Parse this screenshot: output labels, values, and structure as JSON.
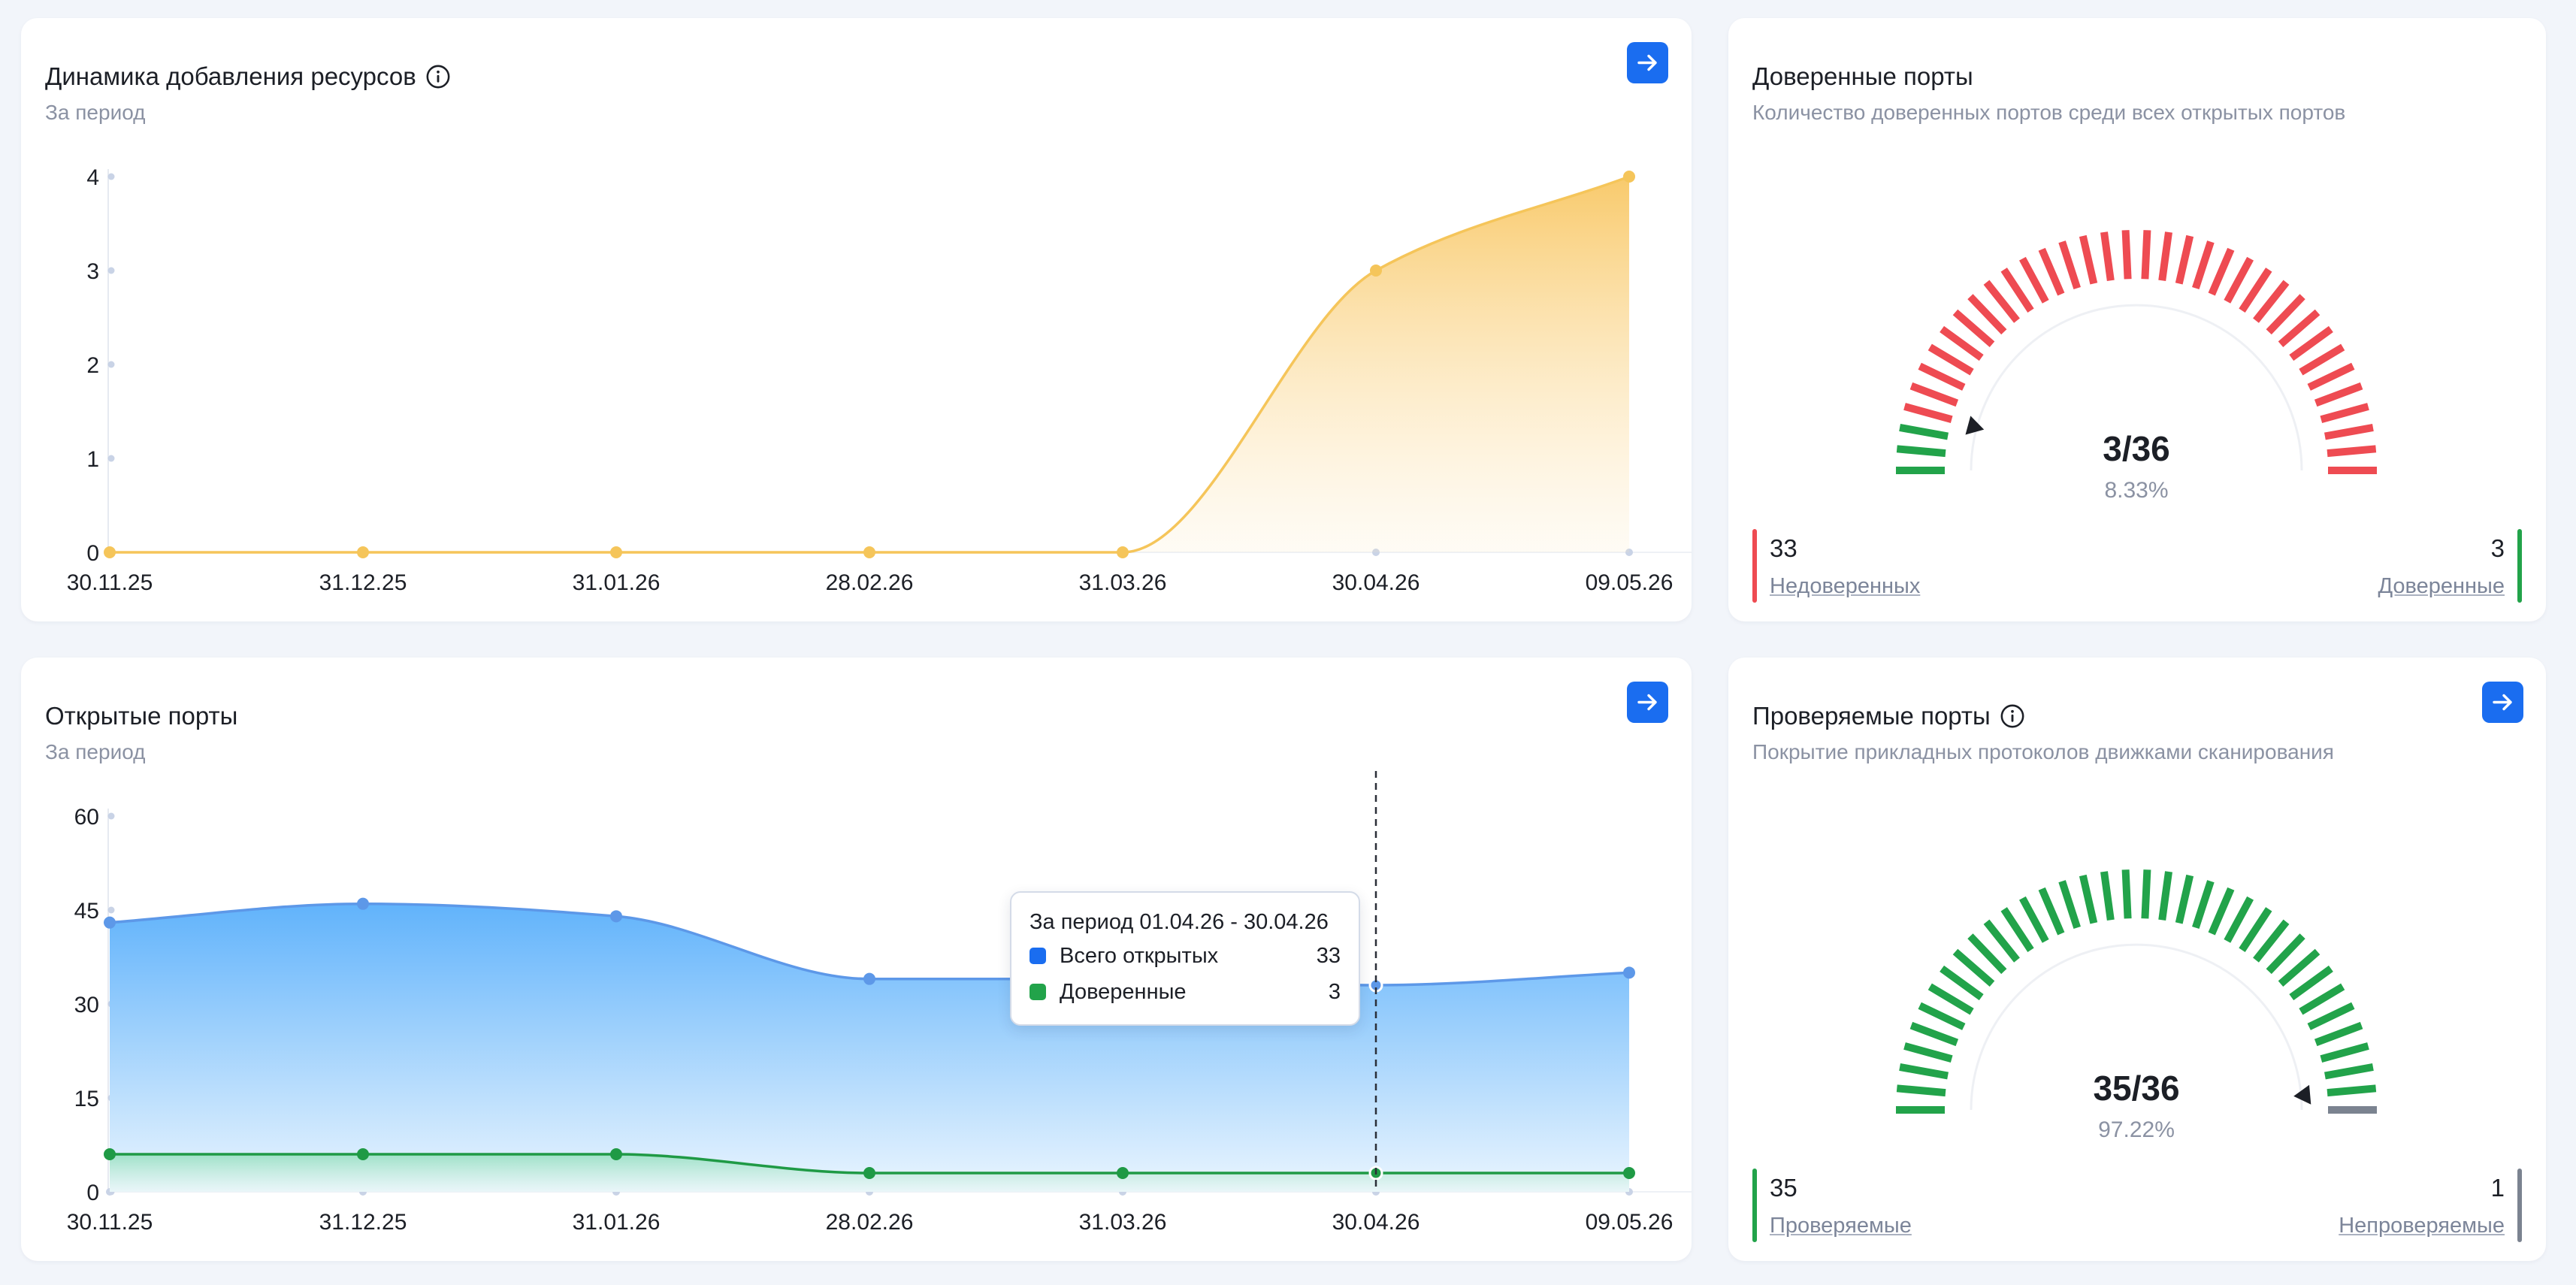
{
  "resources": {
    "title": "Динамика добавления ресурсов",
    "subtitle": "За период"
  },
  "trusted": {
    "title": "Доверенные порты",
    "subtitle": "Количество доверенных портов среди всех открытых портов",
    "value": 3,
    "total": 36,
    "ratio_text": "3/36",
    "percent_text": "8.33%",
    "left_value": "33",
    "left_label": "Недоверенных",
    "right_value": "3",
    "right_label": "Доверенные",
    "colors": {
      "filled": "#22a34a",
      "rest": "#ee4b52",
      "left_bar": "#ee4b52",
      "right_bar": "#22a34a"
    }
  },
  "open_ports": {
    "title": "Открытые порты",
    "subtitle": "За период",
    "tooltip": {
      "title": "За период 01.04.26 - 30.04.26",
      "rows": [
        {
          "name": "Всего открытых",
          "value": "33",
          "color": "#1a6df0"
        },
        {
          "name": "Доверенные",
          "value": "3",
          "color": "#22a34a"
        }
      ]
    }
  },
  "checked": {
    "title": "Проверяемые порты",
    "subtitle": "Покрытие прикладных протоколов движками сканирования",
    "value": 35,
    "total": 36,
    "ratio_text": "35/36",
    "percent_text": "97.22%",
    "left_value": "35",
    "left_label": "Проверяемые",
    "right_value": "1",
    "right_label": "Непроверяемые",
    "colors": {
      "filled": "#22a34a",
      "rest": "#7b8390",
      "left_bar": "#22a34a",
      "right_bar": "#7b8390"
    }
  },
  "chart_data": [
    {
      "type": "area",
      "title": "Динамика добавления ресурсов",
      "x": [
        "30.11.25",
        "31.12.25",
        "31.01.26",
        "28.02.26",
        "31.03.26",
        "30.04.26",
        "09.05.26"
      ],
      "series": [
        {
          "values": [
            0,
            0,
            0,
            0,
            0,
            3,
            4
          ],
          "color": "#f5c55a"
        }
      ],
      "yticks": [
        0,
        1,
        2,
        3,
        4
      ],
      "ylim": [
        0,
        4
      ],
      "grid": false,
      "legend": "none"
    },
    {
      "type": "area",
      "title": "Открытые порты",
      "x": [
        "30.11.25",
        "31.12.25",
        "31.01.26",
        "28.02.26",
        "31.03.26",
        "30.04.26",
        "09.05.26"
      ],
      "series": [
        {
          "name": "Всего открытых",
          "values": [
            43,
            46,
            44,
            34,
            34,
            33,
            35
          ],
          "color": "#1a6df0"
        },
        {
          "name": "Доверенные",
          "values": [
            6,
            6,
            6,
            3,
            3,
            3,
            3
          ],
          "color": "#22a34a"
        }
      ],
      "yticks": [
        0,
        15,
        30,
        45,
        60
      ],
      "ylim": [
        0,
        60
      ],
      "highlight_category": "30.04.26",
      "grid": false,
      "legend": "tooltip"
    }
  ]
}
